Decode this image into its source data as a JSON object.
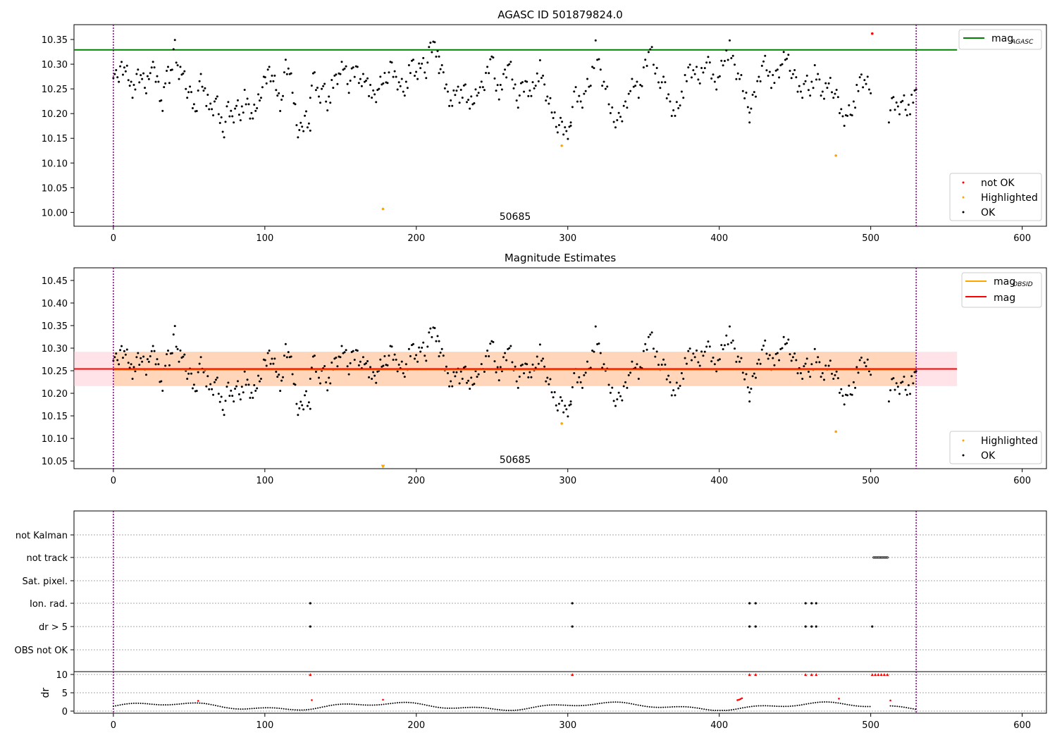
{
  "figure": {
    "title": "AGASC ID 501879824.0",
    "obsid_label": "50685"
  },
  "legend1": [
    {
      "label": "mag",
      "sub": "AGASC",
      "color": "#008000",
      "kind": "line"
    },
    {
      "label": "not OK",
      "color": "#ff0000",
      "kind": "point"
    },
    {
      "label": "Highlighted",
      "color": "#ffa500",
      "kind": "point"
    },
    {
      "label": "OK",
      "color": "#000000",
      "kind": "point"
    }
  ],
  "legend2": [
    {
      "label": "mag",
      "sub": "OBSID",
      "color": "#ffa500",
      "kind": "line"
    },
    {
      "label": "mag",
      "color": "#ff0000",
      "kind": "line"
    },
    {
      "label": "Highlighted",
      "color": "#ffa500",
      "kind": "point"
    },
    {
      "label": "OK",
      "color": "#000000",
      "kind": "point"
    }
  ],
  "chart_data": [
    {
      "type": "scatter",
      "title": "",
      "xlim": [
        -26,
        616
      ],
      "ylim": [
        9.972,
        10.38
      ],
      "xticks": [
        0,
        100,
        200,
        300,
        400,
        500,
        600
      ],
      "yticks": [
        10.0,
        10.05,
        10.1,
        10.15,
        10.2,
        10.25,
        10.3,
        10.35
      ],
      "hlines": [
        {
          "name": "mag_AGASC",
          "y": 10.329,
          "x_end": 557,
          "color": "#008000"
        }
      ],
      "vlines": [
        0,
        530
      ],
      "highlighted": [
        [
          178,
          10.007
        ],
        [
          296,
          10.135
        ],
        [
          477,
          10.115
        ]
      ],
      "not_ok": [
        [
          501,
          10.362
        ]
      ],
      "ok_series": [
        {
          "x0": 0,
          "x1": 130,
          "y": [
            10.29,
            10.26,
            10.3,
            10.29,
            10.27,
            10.24,
            10.28,
            10.27,
            10.25,
            10.3,
            10.28,
            10.26,
            10.21,
            10.3,
            10.27,
            10.34,
            10.27,
            10.29,
            10.25,
            10.23,
            10.2,
            10.27,
            10.26,
            10.22,
            10.2,
            10.23,
            10.19,
            10.17,
            10.21,
            10.19,
            10.22,
            10.2,
            10.23,
            10.21,
            10.19,
            10.22,
            10.25,
            10.26,
            10.29,
            10.27,
            10.25,
            10.21,
            10.3,
            10.28,
            10.23,
            10.17,
            10.16,
            10.2,
            10.17
          ]
        },
        {
          "x0": 130,
          "x1": 215,
          "y": [
            10.25,
            10.27,
            10.23,
            10.26,
            10.22,
            10.25,
            10.27,
            10.28,
            10.3,
            10.26,
            10.28,
            10.29,
            10.26,
            10.28,
            10.24,
            10.23,
            10.25,
            10.27,
            10.28,
            10.29,
            10.27,
            10.26,
            10.25,
            10.28,
            10.3,
            10.27,
            10.31,
            10.29,
            10.33,
            10.34,
            10.32
          ]
        },
        {
          "x0": 215,
          "x1": 302,
          "y": [
            10.3,
            10.27,
            10.24,
            10.22,
            10.26,
            10.23,
            10.25,
            10.21,
            10.23,
            10.26,
            10.24,
            10.29,
            10.32,
            10.26,
            10.24,
            10.28,
            10.3,
            10.26,
            10.23,
            10.25,
            10.26,
            10.24,
            10.27,
            10.29,
            10.25,
            10.22,
            10.2,
            10.18,
            10.17,
            10.16,
            10.18
          ]
        },
        {
          "x0": 302,
          "x1": 420,
          "y": [
            10.2,
            10.24,
            10.22,
            10.25,
            10.27,
            10.33,
            10.28,
            10.25,
            10.21,
            10.19,
            10.18,
            10.22,
            10.25,
            10.27,
            10.24,
            10.3,
            10.33,
            10.29,
            10.27,
            10.25,
            10.22,
            10.2,
            10.23,
            10.26,
            10.29,
            10.28,
            10.27,
            10.31,
            10.29,
            10.26,
            10.28,
            10.32,
            10.33,
            10.29,
            10.27,
            10.24,
            10.22
          ]
        },
        {
          "x0": 420,
          "x1": 500,
          "y": [
            10.2,
            10.23,
            10.27,
            10.31,
            10.29,
            10.26,
            10.28,
            10.3,
            10.32,
            10.29,
            10.26,
            10.24,
            10.27,
            10.25,
            10.28,
            10.26,
            10.23,
            10.27,
            10.25,
            10.22,
            10.19,
            10.2,
            10.21,
            10.24,
            10.27,
            10.26,
            10.25
          ]
        },
        {
          "x0": 512,
          "x1": 530,
          "y": [
            10.2,
            10.22,
            10.21,
            10.23,
            10.21,
            10.22,
            10.24
          ]
        }
      ]
    },
    {
      "type": "scatter",
      "title": "Magnitude Estimates",
      "xlim": [
        -26,
        616
      ],
      "ylim": [
        10.033,
        10.478
      ],
      "xticks": [
        0,
        100,
        200,
        300,
        400,
        500,
        600
      ],
      "yticks": [
        10.05,
        10.1,
        10.15,
        10.2,
        10.25,
        10.3,
        10.35,
        10.4,
        10.45
      ],
      "mag": 10.254,
      "mag_obsid": 10.252,
      "band": [
        10.216,
        10.292
      ],
      "band_x_end": 557,
      "vlines": [
        0,
        530
      ],
      "highlighted": [
        [
          296,
          10.133
        ],
        [
          477,
          10.115
        ]
      ],
      "offscale_marker": [
        [
          178,
          10.037
        ]
      ]
    },
    {
      "type": "scatter",
      "title": "",
      "xlim": [
        -26,
        616
      ],
      "flag_categories": [
        "not Kalman",
        "not track",
        "Sat. pixel.",
        "Ion. rad.",
        "dr > 5",
        "OBS not OK"
      ],
      "flags": {
        "not track": [
          502,
          503,
          504,
          505,
          506,
          507,
          508,
          509,
          510,
          511
        ],
        "Ion. rad.": [
          130,
          303,
          420,
          424,
          457,
          461,
          464
        ],
        "dr > 5": [
          130,
          303,
          420,
          424,
          457,
          461,
          464,
          501
        ]
      },
      "dr_label": "dr",
      "dr_ylim": [
        -0.5,
        10.5
      ],
      "dr_yticks": [
        0,
        5,
        10
      ],
      "dr_clipped_red": [
        130,
        303,
        420,
        424,
        457,
        461,
        464,
        501,
        503,
        505,
        507,
        509,
        511
      ],
      "dr_red": [
        [
          56,
          2.8
        ],
        [
          131,
          3.0
        ],
        [
          178,
          3.1
        ],
        [
          412,
          3.0
        ],
        [
          413,
          3.1
        ],
        [
          414,
          3.3
        ],
        [
          415,
          3.5
        ],
        [
          479,
          3.4
        ],
        [
          513,
          2.9
        ]
      ]
    }
  ]
}
